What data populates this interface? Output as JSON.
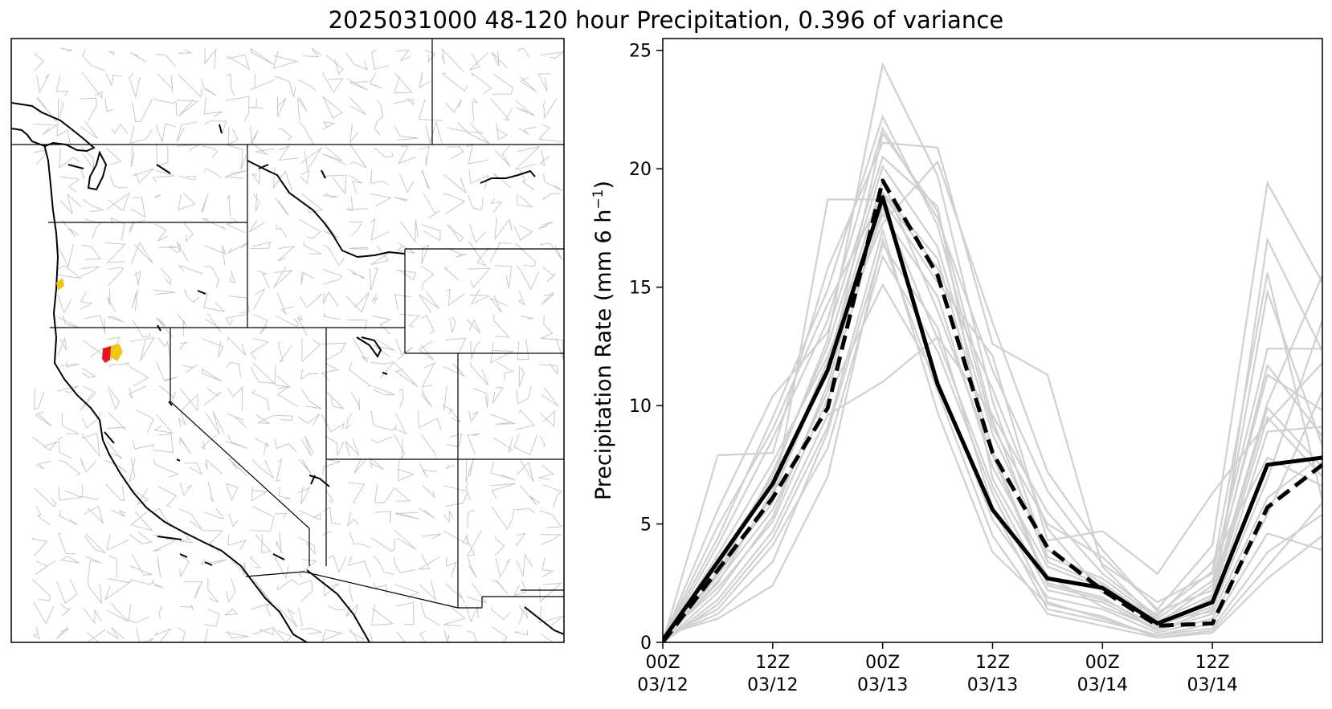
{
  "figure": {
    "title": "2025031000 48-120 hour Precipitation, 0.396 of variance"
  },
  "map": {
    "colors": {
      "rivers": "#c8c8c8",
      "borders": "#000000",
      "highlight_high": "#e8141c",
      "highlight_mid": "#f3c613"
    }
  },
  "chart_data": {
    "type": "line",
    "title": "",
    "xlabel": "",
    "ylabel": "Precipitation Rate (mm 6 h⁻¹)",
    "ylabel_main": "Precipitation Rate (mm 6 h",
    "ylabel_sup": "−1",
    "ylabel_close": ")",
    "ylim": [
      0,
      25.5
    ],
    "xlim": [
      0,
      18
    ],
    "x_hours": [
      0,
      3,
      6,
      9,
      12,
      15,
      18
    ],
    "x_ticks": [
      {
        "hour": 0,
        "line1": "00Z",
        "line2": "03/12"
      },
      {
        "hour": 3,
        "line1": "12Z",
        "line2": "03/12"
      },
      {
        "hour": 6,
        "line1": "00Z",
        "line2": "03/13"
      },
      {
        "hour": 9,
        "line1": "12Z",
        "line2": "03/13"
      },
      {
        "hour": 12,
        "line1": "00Z",
        "line2": "03/14"
      },
      {
        "hour": 15,
        "line1": "12Z",
        "line2": "03/14"
      }
    ],
    "y_ticks": [
      0,
      5,
      10,
      15,
      20,
      25
    ],
    "grid": false,
    "legend": "none",
    "series": [
      {
        "style": "solid",
        "color": "#000000",
        "x": [
          0,
          3,
          4.5,
          6,
          7.5,
          9,
          10.5,
          12,
          13.5,
          15,
          16.5,
          18
        ],
        "values": [
          0.1,
          6.7,
          11.5,
          18.8,
          10.9,
          5.6,
          2.7,
          2.3,
          0.8,
          1.7,
          7.5,
          7.8
        ]
      },
      {
        "style": "dashed",
        "color": "#000000",
        "x": [
          0,
          3,
          4.5,
          6,
          7.5,
          9,
          10.5,
          12,
          13.5,
          15,
          16.5,
          18
        ],
        "values": [
          0.0,
          6.1,
          9.9,
          19.5,
          15.5,
          8.0,
          4.0,
          2.2,
          0.7,
          0.8,
          5.7,
          7.5
        ]
      }
    ],
    "ensemble_color": "#d0d0d0",
    "ensemble_x": [
      0,
      1.5,
      3,
      4.5,
      6,
      7.5,
      9,
      10.5,
      12,
      13.5,
      15,
      16.5,
      18
    ],
    "ensemble": [
      [
        0.0,
        2.1,
        5.3,
        10.9,
        19.0,
        16.2,
        8.1,
        2.5,
        1.9,
        0.5,
        1.2,
        6.1,
        7.9
      ],
      [
        0.1,
        3.4,
        7.0,
        12.8,
        24.4,
        19.7,
        10.2,
        3.6,
        2.7,
        1.0,
        2.6,
        11.3,
        9.8
      ],
      [
        0.2,
        1.4,
        4.1,
        8.2,
        16.3,
        12.3,
        6.3,
        1.7,
        1.0,
        0.3,
        0.6,
        3.8,
        5.4
      ],
      [
        0.0,
        7.9,
        8.0,
        15.8,
        21.1,
        20.9,
        12.6,
        11.3,
        3.2,
        0.9,
        1.3,
        17.0,
        12.3
      ],
      [
        0.1,
        4.4,
        9.5,
        14.9,
        22.2,
        17.6,
        9.1,
        5.0,
        3.6,
        1.4,
        4.1,
        19.4,
        15.2
      ],
      [
        0.0,
        2.8,
        6.2,
        11.6,
        18.1,
        14.6,
        7.4,
        3.2,
        2.3,
        0.8,
        1.8,
        9.5,
        7.0
      ],
      [
        0.3,
        1.0,
        2.4,
        7.0,
        17.0,
        10.6,
        4.5,
        1.2,
        0.7,
        0.2,
        0.4,
        2.7,
        4.5
      ],
      [
        0.0,
        3.0,
        5.9,
        18.7,
        18.7,
        15.2,
        12.1,
        4.3,
        4.7,
        2.9,
        6.3,
        9.3,
        11.8
      ],
      [
        0.1,
        5.6,
        10.4,
        13.1,
        20.5,
        18.4,
        6.9,
        2.8,
        1.5,
        0.6,
        1.9,
        14.8,
        8.3
      ],
      [
        0.0,
        1.8,
        4.7,
        9.6,
        11.0,
        12.9,
        9.6,
        5.5,
        2.9,
        1.1,
        3.4,
        7.8,
        6.6
      ],
      [
        0.2,
        2.3,
        5.1,
        10.3,
        15.1,
        11.1,
        5.2,
        1.9,
        1.4,
        0.4,
        1.0,
        5.4,
        10.6
      ],
      [
        0.0,
        4.1,
        8.6,
        13.6,
        21.7,
        17.9,
        11.5,
        6.4,
        3.3,
        1.7,
        2.9,
        12.4,
        12.4
      ],
      [
        0.1,
        2.5,
        6.4,
        11.9,
        19.5,
        14.0,
        7.9,
        2.4,
        1.8,
        0.7,
        1.5,
        8.9,
        9.1
      ],
      [
        0.0,
        3.7,
        7.6,
        12.1,
        17.7,
        20.3,
        13.5,
        7.2,
        3.9,
        1.3,
        2.2,
        10.1,
        15.5
      ],
      [
        0.2,
        1.2,
        3.4,
        8.9,
        16.8,
        13.3,
        5.7,
        1.4,
        0.9,
        0.3,
        0.8,
        4.6,
        3.9
      ],
      [
        0.0,
        2.9,
        7.2,
        12.5,
        20.1,
        16.7,
        8.8,
        3.9,
        2.5,
        0.9,
        2.0,
        9.9,
        7.4
      ],
      [
        0.1,
        4.9,
        9.0,
        14.3,
        18.9,
        15.8,
        10.7,
        4.8,
        2.1,
        1.2,
        3.0,
        15.6,
        6.0
      ],
      [
        0.0,
        1.6,
        4.4,
        9.1,
        17.4,
        9.7,
        3.8,
        1.6,
        1.1,
        0.2,
        0.5,
        3.2,
        5.9
      ],
      [
        0.3,
        3.2,
        6.8,
        11.3,
        21.5,
        18.2,
        9.4,
        3.4,
        2.4,
        0.8,
        2.4,
        11.7,
        8.7
      ],
      [
        0.0,
        2.6,
        5.6,
        10.6,
        18.4,
        12.8,
        6.6,
        2.2,
        1.7,
        0.5,
        1.4,
        6.9,
        13.6
      ]
    ]
  }
}
